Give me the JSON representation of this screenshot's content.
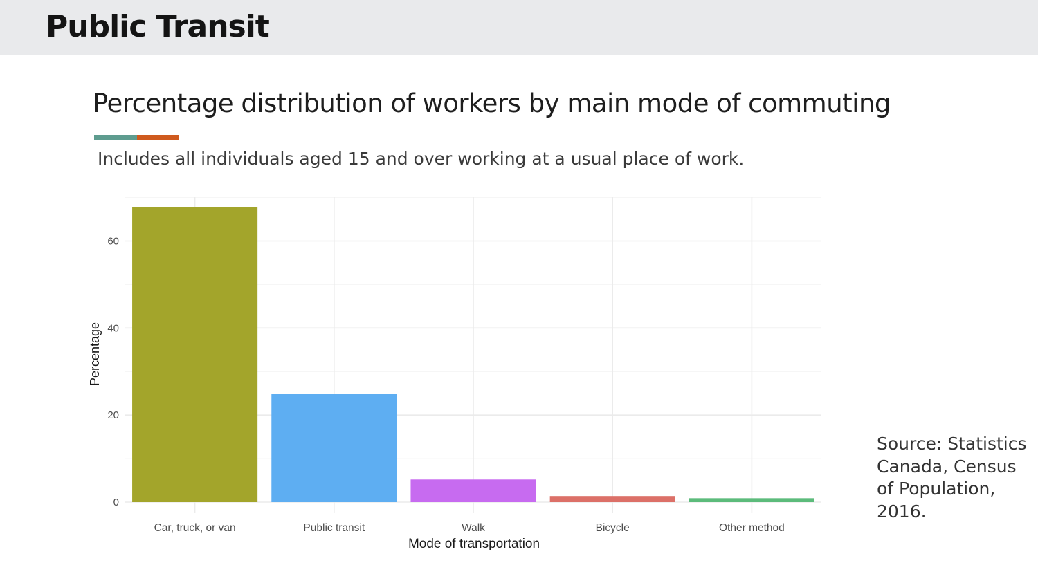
{
  "header": {
    "title": "Public Transit"
  },
  "slide": {
    "subtitle": "Includes all individuals aged 15 and over working at a usual place of work.",
    "source": "Source: Statistics Canada, Census of Population, 2016."
  },
  "colors": {
    "header_bg": "#e9eaec",
    "accent_teal": "#5e9c8f",
    "accent_orange": "#cf5a1e",
    "grid": "#ebebeb"
  },
  "chart_data": {
    "type": "bar",
    "title": "Percentage distribution of workers by main mode of commuting",
    "xlabel": "Mode of transportation",
    "ylabel": "Percentage",
    "categories": [
      "Car, truck, or van",
      "Public transit",
      "Walk",
      "Bicycle",
      "Other method"
    ],
    "values": [
      67.8,
      24.8,
      5.2,
      1.4,
      0.9
    ],
    "colors": [
      "#a3a52b",
      "#5eaef2",
      "#c76bf0",
      "#dc7068",
      "#5cbb7b"
    ],
    "yticks": [
      0,
      20,
      40,
      60
    ],
    "ylim": [
      -2.5,
      70
    ],
    "grid": true,
    "legend": "none"
  }
}
